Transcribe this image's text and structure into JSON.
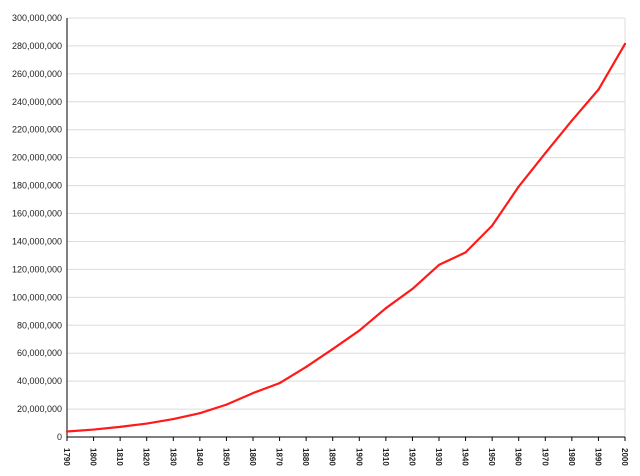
{
  "chart_data": {
    "type": "line",
    "title": "",
    "xlabel": "",
    "ylabel": "",
    "x": [
      1790,
      1800,
      1810,
      1820,
      1830,
      1840,
      1850,
      1860,
      1870,
      1880,
      1890,
      1900,
      1910,
      1920,
      1930,
      1940,
      1950,
      1960,
      1970,
      1980,
      1990,
      2000
    ],
    "x_tick_labels": [
      "1790",
      "1800",
      "1810",
      "1820",
      "1830",
      "1840",
      "1850",
      "1860",
      "1870",
      "1880",
      "1890",
      "1900",
      "1910",
      "1920",
      "1930",
      "1940",
      "1950",
      "1960",
      "1970",
      "1980",
      "1990",
      "2000"
    ],
    "series": [
      {
        "color": "#ff1a1a",
        "values": [
          3929214,
          5308483,
          7239881,
          9638453,
          12866020,
          17069453,
          23191876,
          31443321,
          38558371,
          50189209,
          62979766,
          76212168,
          92228496,
          106021537,
          123202624,
          132164569,
          151325798,
          179323175,
          203211926,
          226545805,
          248709873,
          281421906
        ]
      }
    ],
    "ylim": [
      0,
      300000000
    ],
    "y_ticks": [
      0,
      20000000,
      40000000,
      60000000,
      80000000,
      100000000,
      120000000,
      140000000,
      160000000,
      180000000,
      200000000,
      220000000,
      240000000,
      260000000,
      280000000,
      300000000
    ],
    "y_tick_labels": [
      "0",
      "20,000,000",
      "40,000,000",
      "60,000,000",
      "80,000,000",
      "100,000,000",
      "120,000,000",
      "140,000,000",
      "160,000,000",
      "180,000,000",
      "200,000,000",
      "220,000,000",
      "240,000,000",
      "260,000,000",
      "280,000,000",
      "300,000,000"
    ],
    "grid": true,
    "legend": "none"
  }
}
